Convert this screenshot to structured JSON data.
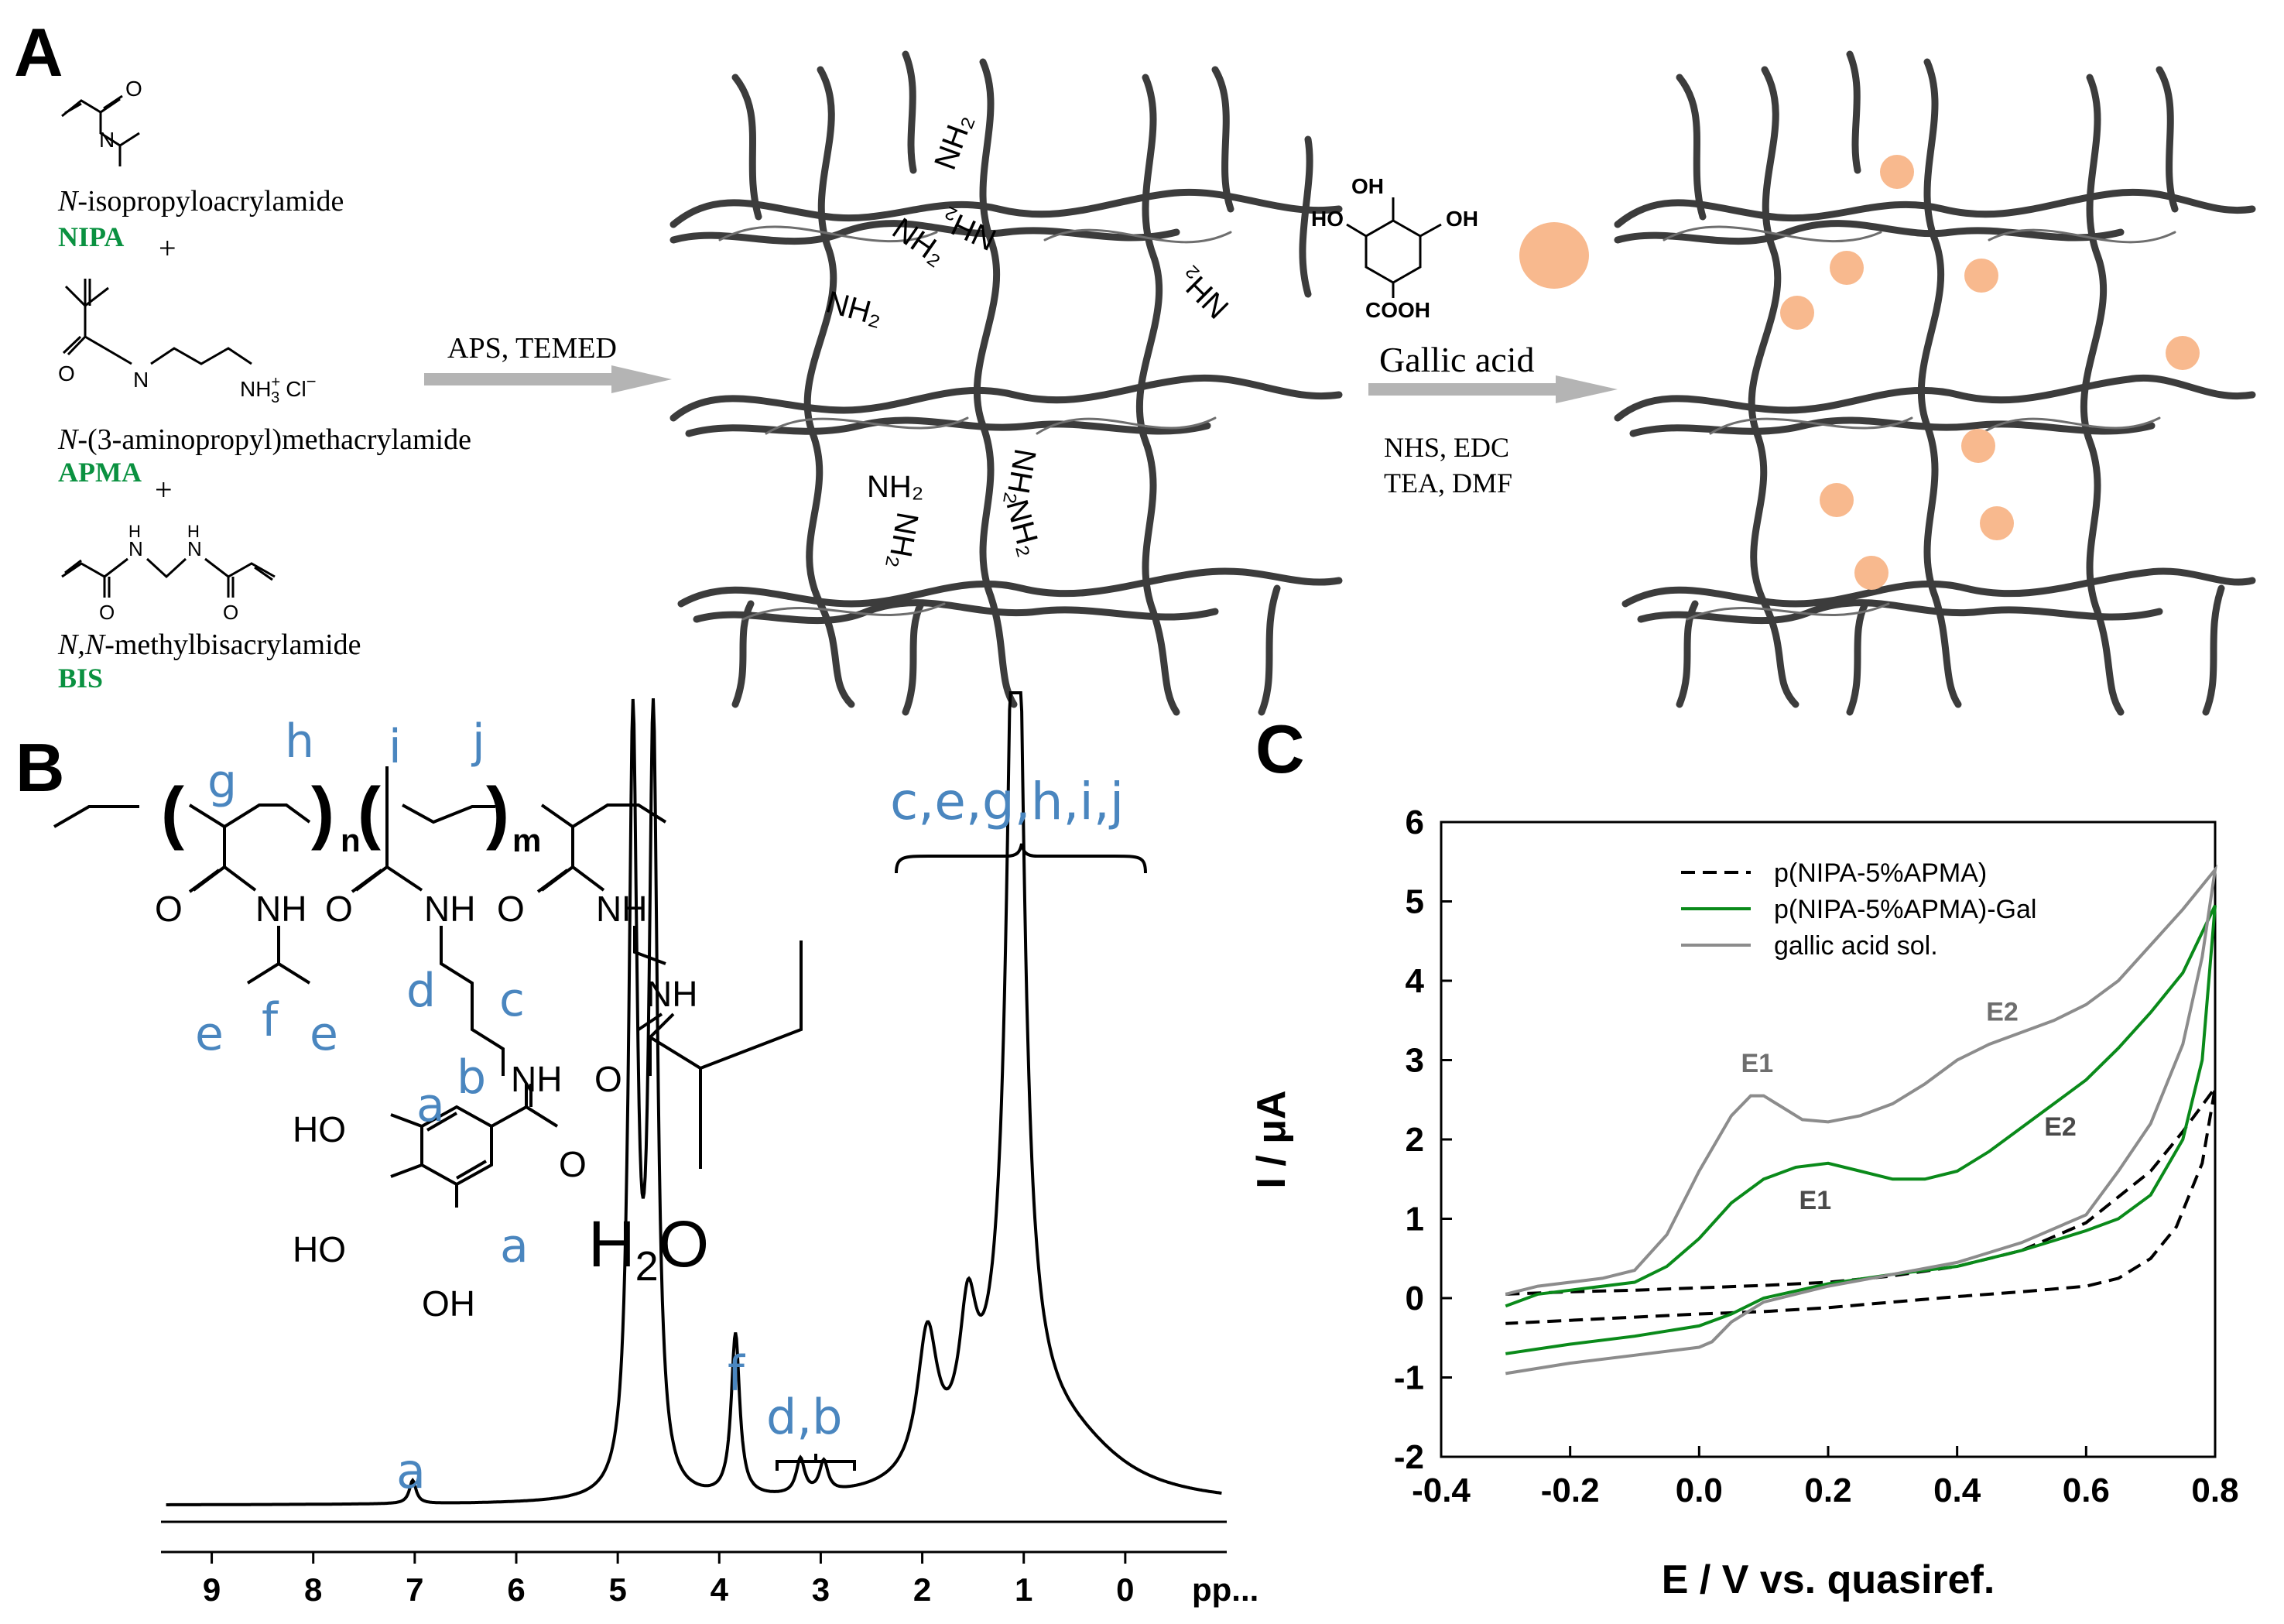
{
  "panels": {
    "a": "A",
    "b": "B",
    "c": "C"
  },
  "panel_a": {
    "monomers": [
      {
        "name_italic": "N",
        "name_rest": "-isopropyloacrylamide",
        "abbr": "NIPA",
        "plus": "+"
      },
      {
        "name_italic": "N",
        "name_rest": "-(3-aminopropyl)methacrylamide",
        "abbr": "APMA",
        "plus": "+"
      },
      {
        "name_italic": "N,N",
        "name_rest": "-methylbisacrylamide",
        "abbr": "BIS",
        "plus": ""
      }
    ],
    "atoms": {
      "o": "O",
      "n": "N",
      "h": "H",
      "nh3": "NH",
      "nh3_sup": "+",
      "nh3_sub": "3",
      "cl": "Cl",
      "cl_sup": "−"
    },
    "reaction1": "APS, TEMED",
    "amine_group": "NH₂",
    "amine_group_flipped": "NH₂",
    "gallic_acid": {
      "ho1": "HO",
      "oh_top": "OH",
      "oh_right": "OH",
      "cooh": "COOH"
    },
    "reaction2_title": "Gallic acid",
    "reaction2_line1": "NHS, EDC",
    "reaction2_line2": "TEA, DMF",
    "colors": {
      "bead": "#f8b98e",
      "network": "#3c3c3c",
      "abbr_green": "#0a9140",
      "arrow": "#b4b4b4"
    }
  },
  "panel_b": {
    "structure_atoms": {
      "o": "O",
      "nh": "NH",
      "ho": "HO",
      "oh": "OH",
      "n_sub": "n",
      "m_sub": "m"
    },
    "structure_labels": [
      "g",
      "h",
      "i",
      "j",
      "e",
      "f",
      "e",
      "d",
      "c",
      "b",
      "a",
      "a"
    ],
    "water_label": "H",
    "water_sub": "2",
    "water_O": "O",
    "peak_labels": {
      "a": "a",
      "f": "f",
      "db": "d,b",
      "cluster": "c,e,g,h,i,j"
    },
    "axis_ticks": [
      "9",
      "8",
      "7",
      "6",
      "5",
      "4",
      "3",
      "2",
      "1",
      "0"
    ],
    "axis_unit": "pp...",
    "label_color": "#4a86bf"
  },
  "chart_data": {
    "type": "line",
    "xlabel": "E / V vs. quasiref.",
    "ylabel": "I / μA",
    "xlim": [
      -0.4,
      0.8
    ],
    "ylim": [
      -2,
      6
    ],
    "xticks": [
      "-0.4",
      "-0.2",
      "0.0",
      "0.2",
      "0.4",
      "0.6",
      "0.8"
    ],
    "yticks": [
      "-2",
      "-1",
      "0",
      "1",
      "2",
      "3",
      "4",
      "5",
      "6"
    ],
    "legend_placement": "top-center",
    "series": [
      {
        "name": "p(NIPA-5%APMA)",
        "color": "#000000",
        "dash": "dashed",
        "x": [
          -0.3,
          -0.2,
          -0.1,
          0.0,
          0.1,
          0.2,
          0.3,
          0.4,
          0.5,
          0.6,
          0.7,
          0.75,
          0.8,
          0.78,
          0.74,
          0.7,
          0.65,
          0.6,
          0.5,
          0.4,
          0.3,
          0.2,
          0.1,
          0.0,
          -0.1,
          -0.2,
          -0.3
        ],
        "y": [
          0.05,
          0.08,
          0.1,
          0.13,
          0.16,
          0.2,
          0.28,
          0.4,
          0.6,
          0.95,
          1.6,
          2.1,
          2.65,
          1.7,
          0.9,
          0.5,
          0.25,
          0.15,
          0.08,
          0.02,
          -0.05,
          -0.12,
          -0.17,
          -0.2,
          -0.24,
          -0.28,
          -0.32
        ]
      },
      {
        "name": "p(NIPA-5%APMA)-Gal",
        "color": "#0a8a1a",
        "dash": "solid",
        "x": [
          -0.3,
          -0.25,
          -0.2,
          -0.1,
          -0.05,
          0.0,
          0.05,
          0.1,
          0.15,
          0.2,
          0.25,
          0.3,
          0.35,
          0.4,
          0.45,
          0.5,
          0.55,
          0.6,
          0.65,
          0.7,
          0.75,
          0.8,
          0.78,
          0.75,
          0.7,
          0.65,
          0.6,
          0.5,
          0.4,
          0.3,
          0.2,
          0.1,
          0.05,
          0.0,
          -0.1,
          -0.2,
          -0.3
        ],
        "y": [
          -0.1,
          0.05,
          0.1,
          0.2,
          0.4,
          0.75,
          1.2,
          1.5,
          1.65,
          1.7,
          1.6,
          1.5,
          1.5,
          1.6,
          1.85,
          2.15,
          2.45,
          2.75,
          3.15,
          3.6,
          4.1,
          4.95,
          3.0,
          2.0,
          1.3,
          1.0,
          0.85,
          0.6,
          0.4,
          0.3,
          0.18,
          0.0,
          -0.2,
          -0.35,
          -0.48,
          -0.58,
          -0.7
        ]
      },
      {
        "name": "gallic acid sol.",
        "color": "#8c8c8c",
        "dash": "solid",
        "x": [
          -0.3,
          -0.25,
          -0.2,
          -0.15,
          -0.1,
          -0.05,
          0.0,
          0.05,
          0.08,
          0.1,
          0.13,
          0.16,
          0.2,
          0.25,
          0.3,
          0.35,
          0.4,
          0.45,
          0.5,
          0.55,
          0.6,
          0.65,
          0.7,
          0.75,
          0.8,
          0.78,
          0.75,
          0.7,
          0.65,
          0.6,
          0.5,
          0.4,
          0.3,
          0.2,
          0.1,
          0.05,
          0.02,
          0.0,
          -0.1,
          -0.2,
          -0.3
        ],
        "y": [
          0.05,
          0.15,
          0.2,
          0.25,
          0.35,
          0.8,
          1.6,
          2.3,
          2.55,
          2.55,
          2.4,
          2.25,
          2.22,
          2.3,
          2.45,
          2.7,
          3.0,
          3.2,
          3.35,
          3.5,
          3.7,
          4.0,
          4.45,
          4.9,
          5.4,
          4.3,
          3.2,
          2.2,
          1.6,
          1.05,
          0.7,
          0.45,
          0.3,
          0.15,
          -0.05,
          -0.3,
          -0.55,
          -0.62,
          -0.72,
          -0.82,
          -0.95
        ]
      }
    ],
    "annotations": [
      {
        "text": "E1",
        "x": 0.09,
        "y": 2.85,
        "color": "#6e6e6e"
      },
      {
        "text": "E2",
        "x": 0.47,
        "y": 3.5,
        "color": "#6e6e6e"
      },
      {
        "text": "E1",
        "x": 0.18,
        "y": 1.12,
        "color": "#4a4a4a"
      },
      {
        "text": "E2",
        "x": 0.56,
        "y": 2.05,
        "color": "#4a4a4a"
      }
    ]
  }
}
